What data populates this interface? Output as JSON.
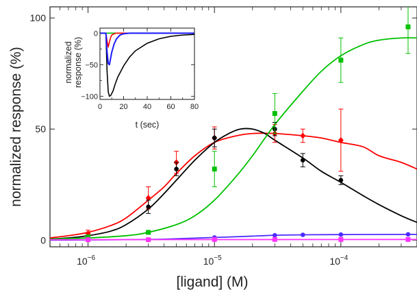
{
  "chart_data": [
    {
      "type": "scatter",
      "title": "",
      "xlabel": "[ligand] (M)",
      "ylabel": "normalized response (%)",
      "xscale": "log",
      "xlim": [
        5e-07,
        0.0004
      ],
      "ylim": [
        -3,
        105
      ],
      "xticks": [
        {
          "value": 1e-06,
          "base": "10",
          "exp": "−6"
        },
        {
          "value": 1e-05,
          "base": "10",
          "exp": "−5"
        },
        {
          "value": 0.0001,
          "base": "10",
          "exp": "−4"
        }
      ],
      "yticks": [
        0,
        50,
        100
      ],
      "grid": false,
      "legend": "none",
      "series": [
        {
          "color": "#ff0000",
          "marker": "diamond",
          "points": [
            {
              "x": 1e-06,
              "y": 3,
              "err": 1.5
            },
            {
              "x": 3e-06,
              "y": 19,
              "err": 5
            },
            {
              "x": 5e-06,
              "y": 35,
              "err": 5
            },
            {
              "x": 1e-05,
              "y": 46,
              "err": 5
            },
            {
              "x": 3e-05,
              "y": 48,
              "err": 4
            },
            {
              "x": 5e-05,
              "y": 47,
              "err": 3
            },
            {
              "x": 0.0001,
              "y": 45,
              "err": 14
            }
          ],
          "fit": [
            [
              5e-07,
              1
            ],
            [
              7e-07,
              2
            ],
            [
              1e-06,
              3.5
            ],
            [
              1.5e-06,
              6.5
            ],
            [
              2e-06,
              10
            ],
            [
              3e-06,
              18
            ],
            [
              4e-06,
              24
            ],
            [
              5e-06,
              30
            ],
            [
              7e-06,
              38
            ],
            [
              1e-05,
              44
            ],
            [
              1.5e-05,
              47
            ],
            [
              2e-05,
              48
            ],
            [
              3e-05,
              48
            ],
            [
              5e-05,
              47
            ],
            [
              7e-05,
              46
            ],
            [
              0.0001,
              44
            ],
            [
              0.00015,
              42
            ],
            [
              0.0002,
              38
            ],
            [
              0.0003,
              35
            ],
            [
              0.0004,
              32
            ]
          ]
        },
        {
          "color": "#000000",
          "marker": "circle",
          "points": [
            {
              "x": 3e-06,
              "y": 15,
              "err": 3
            },
            {
              "x": 5e-06,
              "y": 32,
              "err": 3
            },
            {
              "x": 1e-05,
              "y": 46,
              "err": 4
            },
            {
              "x": 3e-05,
              "y": 50,
              "err": 3
            },
            {
              "x": 5e-05,
              "y": 36,
              "err": 3
            },
            {
              "x": 0.0001,
              "y": 27,
              "err": 2
            }
          ],
          "fit": [
            [
              5e-07,
              0.5
            ],
            [
              7e-07,
              1
            ],
            [
              1e-06,
              2
            ],
            [
              1.5e-06,
              4
            ],
            [
              2e-06,
              7
            ],
            [
              3e-06,
              14
            ],
            [
              4e-06,
              21
            ],
            [
              5e-06,
              27
            ],
            [
              7e-06,
              36
            ],
            [
              1e-05,
              44
            ],
            [
              1.3e-05,
              48
            ],
            [
              1.6e-05,
              50
            ],
            [
              2e-05,
              50
            ],
            [
              2.5e-05,
              48
            ],
            [
              3e-05,
              45
            ],
            [
              5e-05,
              37
            ],
            [
              7e-05,
              31
            ],
            [
              0.0001,
              26
            ],
            [
              0.00015,
              20
            ],
            [
              0.0002,
              16
            ],
            [
              0.0003,
              11
            ],
            [
              0.0004,
              8
            ]
          ]
        },
        {
          "color": "#00c000",
          "marker": "square",
          "points": [
            {
              "x": 1e-06,
              "y": 1.5,
              "err": 0.5
            },
            {
              "x": 3e-06,
              "y": 3.5,
              "err": 0.5
            },
            {
              "x": 1e-05,
              "y": 32,
              "err": 8
            },
            {
              "x": 3e-05,
              "y": 57,
              "err": 9
            },
            {
              "x": 0.0001,
              "y": 81,
              "err": 10
            },
            {
              "x": 0.00034,
              "y": 96,
              "err": 12
            }
          ],
          "fit": [
            [
              5e-07,
              0.5
            ],
            [
              1e-06,
              1
            ],
            [
              2e-06,
              2
            ],
            [
              3e-06,
              3.5
            ],
            [
              5e-06,
              7
            ],
            [
              7e-06,
              11
            ],
            [
              1e-05,
              18
            ],
            [
              1.5e-05,
              29
            ],
            [
              2e-05,
              38
            ],
            [
              3e-05,
              52
            ],
            [
              5e-05,
              67
            ],
            [
              7e-05,
              76
            ],
            [
              0.0001,
              83
            ],
            [
              0.00015,
              88
            ],
            [
              0.0002,
              90
            ],
            [
              0.0003,
              91
            ],
            [
              0.0004,
              91
            ]
          ]
        },
        {
          "color": "#4a2bff",
          "marker": "circle",
          "points": [
            {
              "x": 1e-05,
              "y": 1.2,
              "err": 0
            },
            {
              "x": 3e-05,
              "y": 2.2,
              "err": 0
            },
            {
              "x": 5e-05,
              "y": 2.4,
              "err": 0
            },
            {
              "x": 0.0001,
              "y": 2.5,
              "err": 0
            },
            {
              "x": 0.00034,
              "y": 2.6,
              "err": 0
            }
          ],
          "fit": [
            [
              5e-07,
              0
            ],
            [
              3e-06,
              0.3
            ],
            [
              5e-06,
              0.6
            ],
            [
              1e-05,
              1.2
            ],
            [
              2e-05,
              1.8
            ],
            [
              3e-05,
              2.2
            ],
            [
              5e-05,
              2.4
            ],
            [
              0.0001,
              2.5
            ],
            [
              0.0004,
              2.6
            ]
          ]
        },
        {
          "color": "#ff33ff",
          "marker": "square",
          "points": [
            {
              "x": 1e-06,
              "y": 0.2,
              "err": 0
            },
            {
              "x": 3e-06,
              "y": 0.2,
              "err": 0
            },
            {
              "x": 1e-05,
              "y": 0.3,
              "err": 0
            },
            {
              "x": 3e-05,
              "y": 0.3,
              "err": 0
            },
            {
              "x": 0.0001,
              "y": 0.3,
              "err": 0
            },
            {
              "x": 0.00034,
              "y": 0.3,
              "err": 0
            }
          ],
          "fit": [
            [
              5e-07,
              0.2
            ],
            [
              0.0004,
              0.3
            ]
          ]
        }
      ]
    },
    {
      "type": "line",
      "title": "",
      "xlabel": "t (sec)",
      "ylabel_line1": "normalized",
      "ylabel_line2": "response (%)",
      "xlim": [
        0,
        80
      ],
      "ylim": [
        -105,
        8
      ],
      "xticks": [
        0,
        20,
        40,
        60,
        80
      ],
      "yticks": [
        0,
        -50,
        -100
      ],
      "grid": false,
      "legend": "none",
      "series": [
        {
          "color": "#00c000",
          "points": [
            [
              0,
              0
            ],
            [
              80,
              0
            ]
          ]
        },
        {
          "color": "#ff0000",
          "points": [
            [
              0,
              0
            ],
            [
              5,
              0
            ],
            [
              6,
              -12
            ],
            [
              7,
              -22
            ],
            [
              8,
              -14
            ],
            [
              9,
              -7
            ],
            [
              10,
              -3
            ],
            [
              12,
              -1
            ],
            [
              14,
              0
            ],
            [
              80,
              0
            ]
          ]
        },
        {
          "color": "#000000",
          "points": [
            [
              0,
              0
            ],
            [
              5,
              0
            ],
            [
              6,
              -60
            ],
            [
              7,
              -93
            ],
            [
              8,
              -100
            ],
            [
              9,
              -99
            ],
            [
              11,
              -92
            ],
            [
              13,
              -80
            ],
            [
              15,
              -70
            ],
            [
              20,
              -52
            ],
            [
              25,
              -38
            ],
            [
              30,
              -28
            ],
            [
              40,
              -16
            ],
            [
              50,
              -9
            ],
            [
              60,
              -5
            ],
            [
              70,
              -3
            ],
            [
              80,
              -2
            ]
          ]
        },
        {
          "color": "#1a1aff",
          "points": [
            [
              0,
              0
            ],
            [
              5,
              0
            ],
            [
              6,
              -30
            ],
            [
              7,
              -48
            ],
            [
              8,
              -50
            ],
            [
              9,
              -40
            ],
            [
              10,
              -30
            ],
            [
              12,
              -17
            ],
            [
              14,
              -9
            ],
            [
              17,
              -3
            ],
            [
              20,
              -1
            ],
            [
              25,
              0
            ],
            [
              80,
              0
            ]
          ]
        }
      ]
    }
  ]
}
